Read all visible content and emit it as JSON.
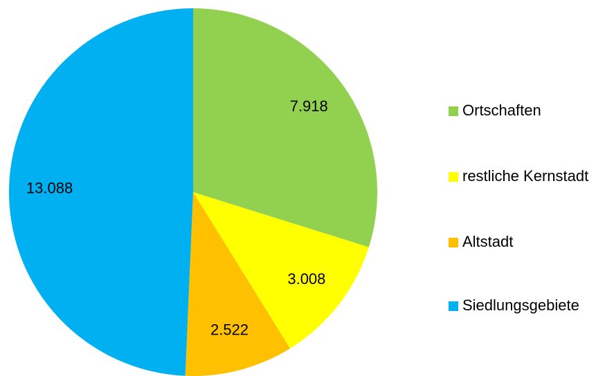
{
  "chart_data": {
    "type": "pie",
    "categories": [
      "Ortschaften",
      "restliche Kernstadt",
      "Altstadt",
      "Siedlungsgebiete"
    ],
    "values": [
      7918,
      3008,
      2522,
      13088
    ],
    "value_labels": [
      "7.918",
      "3.008",
      "2.522",
      "13.088"
    ],
    "colors": [
      "#92d050",
      "#ffff00",
      "#ffc000",
      "#00b0f0"
    ],
    "legend": "right"
  }
}
